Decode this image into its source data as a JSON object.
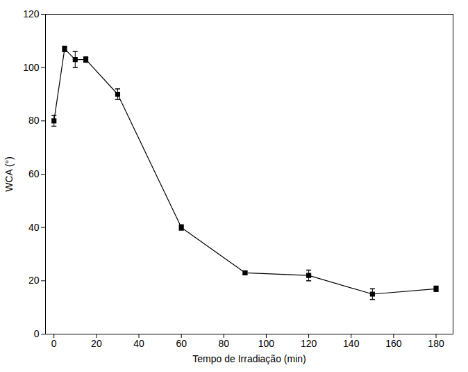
{
  "chart_data": {
    "type": "line",
    "x_label": "Tempo de Irradiação (min)",
    "y_label": "WCA (°)",
    "x": [
      0,
      5,
      10,
      15,
      30,
      60,
      90,
      120,
      150,
      180
    ],
    "values": [
      80,
      107,
      103,
      103,
      90,
      40,
      23,
      22,
      15,
      17
    ],
    "errors": [
      2,
      1,
      3,
      1,
      2,
      1,
      0.5,
      2,
      2,
      1
    ],
    "color": "#000000",
    "marker": "square",
    "line_style": "solid",
    "xlim": [
      -4,
      188
    ],
    "xticks": [
      0,
      20,
      40,
      60,
      80,
      100,
      120,
      140,
      160,
      180
    ],
    "ylim": [
      0,
      120
    ],
    "yticks": [
      0,
      20,
      40,
      60,
      80,
      100,
      120
    ],
    "grid": false
  }
}
